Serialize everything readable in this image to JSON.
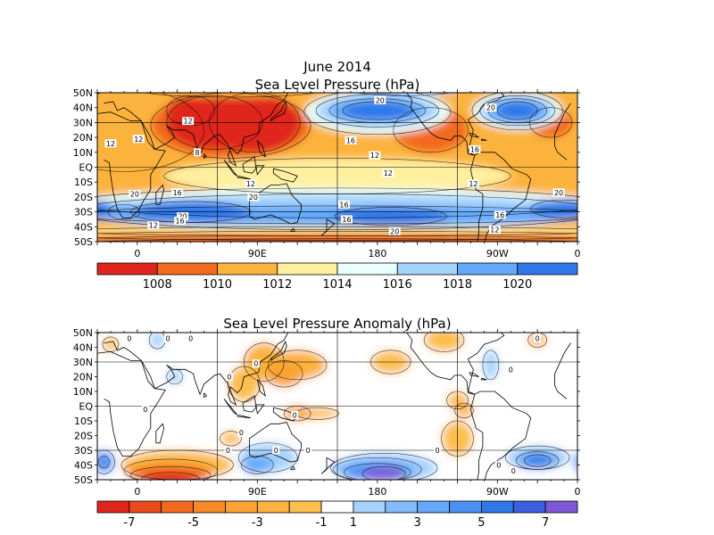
{
  "figure": {
    "title_line1": "June 2014",
    "title_line2": "Sea Level Pressure (hPa)",
    "title_anomaly": "Sea Level Pressure Anomaly (hPa)"
  },
  "axes": {
    "lat_labels": [
      "50N",
      "40N",
      "30N",
      "20N",
      "10N",
      "EQ",
      "10S",
      "20S",
      "30S",
      "40S",
      "50S"
    ],
    "lon_labels": [
      "0",
      "90E",
      "180",
      "90W",
      "0"
    ]
  },
  "chart_data": [
    {
      "type": "heatmap",
      "title": "Sea Level Pressure (hPa)",
      "unit": "hPa",
      "lat_range": [
        -50,
        50
      ],
      "lon_range": [
        0,
        360
      ],
      "colorbar": {
        "labels": [
          "1008",
          "1010",
          "1012",
          "1014",
          "1016",
          "1018",
          "1020"
        ],
        "boundaries": [
          1006,
          1008,
          1010,
          1012,
          1014,
          1016,
          1018,
          1020,
          1022
        ],
        "colors": [
          "#e0251d",
          "#f26a1e",
          "#fcb33e",
          "#fff0a0",
          "#e8fffc",
          "#a6d3fc",
          "#64a8fc",
          "#2e78e8"
        ]
      },
      "contour_labels": [
        {
          "lat": 16,
          "lon": 10,
          "text": "12"
        },
        {
          "lat": 31,
          "lon": 68,
          "text": "12"
        },
        {
          "lat": 19,
          "lon": 31,
          "text": "12"
        },
        {
          "lat": 10,
          "lon": 75,
          "text": "8"
        },
        {
          "lat": 45,
          "lon": 212,
          "text": "20"
        },
        {
          "lat": 18,
          "lon": 190,
          "text": "16"
        },
        {
          "lat": 8,
          "lon": 208,
          "text": "12"
        },
        {
          "lat": -4,
          "lon": 218,
          "text": "12"
        },
        {
          "lat": -18,
          "lon": 28,
          "text": "20"
        },
        {
          "lat": -17,
          "lon": 60,
          "text": "16"
        },
        {
          "lat": -11,
          "lon": 115,
          "text": "12"
        },
        {
          "lat": -20,
          "lon": 117,
          "text": "20"
        },
        {
          "lat": -25,
          "lon": 185,
          "text": "16"
        },
        {
          "lat": -35,
          "lon": 187,
          "text": "16"
        },
        {
          "lat": -43,
          "lon": 223,
          "text": "20"
        },
        {
          "lat": -33,
          "lon": 64,
          "text": "20"
        },
        {
          "lat": -36,
          "lon": 62,
          "text": "16"
        },
        {
          "lat": -39,
          "lon": 42,
          "text": "12"
        },
        {
          "lat": 40,
          "lon": 295,
          "text": "20"
        },
        {
          "lat": 12,
          "lon": 283,
          "text": "16"
        },
        {
          "lat": -11,
          "lon": 282,
          "text": "12"
        },
        {
          "lat": -17,
          "lon": 346,
          "text": "20"
        },
        {
          "lat": -32,
          "lon": 302,
          "text": "16"
        },
        {
          "lat": -42,
          "lon": 298,
          "text": "12"
        }
      ]
    },
    {
      "type": "heatmap",
      "title": "Sea Level Pressure Anomaly (hPa)",
      "unit": "hPa",
      "lat_range": [
        -50,
        50
      ],
      "lon_range": [
        0,
        360
      ],
      "colorbar": {
        "labels": [
          "-7",
          "-5",
          "-3",
          "-1",
          "1",
          "3",
          "5",
          "7"
        ],
        "boundaries": [
          -9,
          -7,
          -6,
          -5,
          -4,
          -3,
          -2,
          -1,
          1,
          2,
          3,
          4,
          5,
          6,
          7,
          9
        ],
        "colors": [
          "#e0251d",
          "#ea4a1c",
          "#f26a1e",
          "#f98a28",
          "#fca233",
          "#fcb33e",
          "#fcbf4c",
          "#ffffff",
          "#a6d3fc",
          "#82bcfc",
          "#64a8fc",
          "#4a90f4",
          "#2e78e8",
          "#3c5ee0",
          "#7e58d8"
        ]
      },
      "contour_labels": [
        {
          "lat": 46,
          "lon": 24,
          "text": "0"
        },
        {
          "lat": 46,
          "lon": 53,
          "text": "0"
        },
        {
          "lat": 46,
          "lon": 70,
          "text": "0"
        },
        {
          "lat": 29,
          "lon": 119,
          "text": "0"
        },
        {
          "lat": 20,
          "lon": 99,
          "text": "0"
        },
        {
          "lat": 46,
          "lon": 330,
          "text": "0"
        },
        {
          "lat": 25,
          "lon": 310,
          "text": "0"
        },
        {
          "lat": -2,
          "lon": 36,
          "text": "0"
        },
        {
          "lat": -6,
          "lon": 148,
          "text": "0"
        },
        {
          "lat": -18,
          "lon": 108,
          "text": "0"
        },
        {
          "lat": -30,
          "lon": 98,
          "text": "0"
        },
        {
          "lat": -30,
          "lon": 134,
          "text": "0"
        },
        {
          "lat": -30,
          "lon": 158,
          "text": "0"
        },
        {
          "lat": -30,
          "lon": 255,
          "text": "0"
        },
        {
          "lat": -40,
          "lon": 301,
          "text": "0"
        },
        {
          "lat": -44,
          "lon": 312,
          "text": "0"
        }
      ]
    }
  ]
}
